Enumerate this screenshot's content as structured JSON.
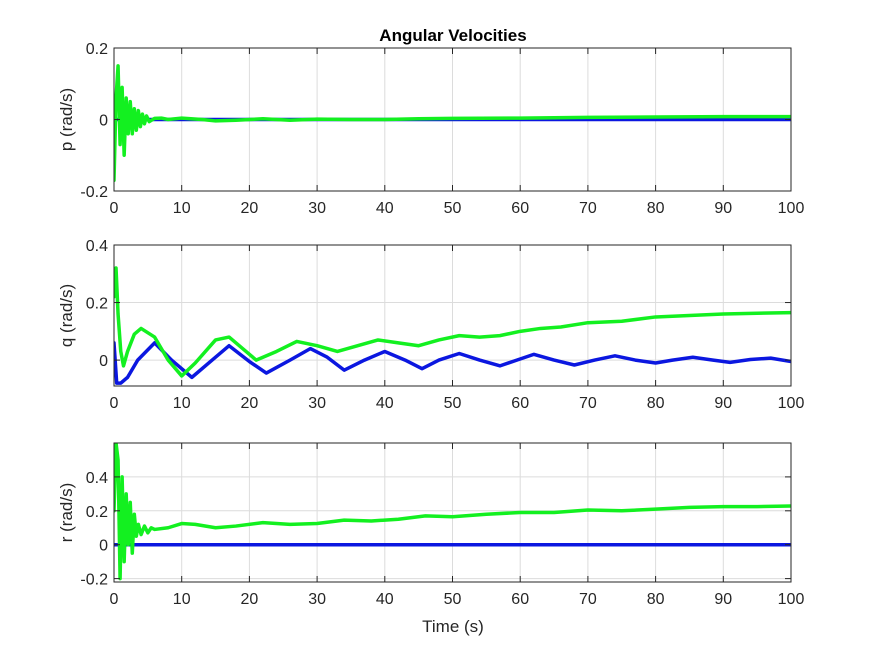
{
  "chart_data": {
    "type": "line",
    "title": "Angular Velocities",
    "xlabel": "Time (s)",
    "colors": {
      "series1": "#0b17e0",
      "series2": "#13f020"
    },
    "x_range": [
      0,
      100
    ],
    "x_ticks": [
      "0",
      "10",
      "20",
      "30",
      "40",
      "50",
      "60",
      "70",
      "80",
      "90",
      "100"
    ],
    "grid": true,
    "subplots": [
      {
        "ylabel": "p (rad/s)",
        "ylim": [
          -0.2,
          0.2
        ],
        "y_ticks": [
          -0.2,
          0,
          0.2
        ],
        "y_tick_labels": [
          "-0.2",
          "0",
          "0.2"
        ],
        "series": [
          {
            "x": [
              0,
              100
            ],
            "y": [
              0,
              0
            ]
          },
          {
            "x": [
              0,
              0.3,
              0.6,
              0.9,
              1.2,
              1.5,
              1.8,
              2.1,
              2.4,
              2.7,
              3.0,
              3.3,
              3.6,
              3.9,
              4.2,
              4.5,
              4.8,
              5.2,
              6,
              7,
              8,
              10,
              13,
              15,
              18,
              22,
              26,
              30,
              35,
              40,
              45,
              50,
              60,
              70,
              80,
              90,
              100
            ],
            "y": [
              -0.17,
              0.06,
              0.15,
              -0.07,
              0.09,
              -0.1,
              0.06,
              -0.04,
              0.05,
              -0.04,
              0.03,
              -0.03,
              0.025,
              -0.02,
              0.015,
              -0.012,
              0.01,
              -0.006,
              0.003,
              0.004,
              0,
              0.004,
              0,
              -0.004,
              -0.002,
              0.002,
              -0.002,
              0.001,
              0,
              0,
              0.002,
              0.003,
              0.004,
              0.006,
              0.007,
              0.008,
              0.008
            ]
          }
        ]
      },
      {
        "ylabel": "q (rad/s)",
        "ylim": [
          -0.09,
          0.4
        ],
        "y_ticks": [
          0,
          0.2,
          0.4
        ],
        "y_tick_labels": [
          "0",
          "0.2",
          "0.4"
        ],
        "series": [
          {
            "x": [
              0,
              0.4,
              1,
              2,
              3.5,
              6,
              8.5,
              11.5,
              14.5,
              17,
              20,
              22.5,
              26,
              29,
              31.5,
              34,
              37,
              40,
              43,
              45.5,
              48,
              51,
              54,
              57,
              59.5,
              62,
              65,
              68,
              71,
              74,
              77,
              80,
              82.5,
              85.5,
              88.5,
              91,
              94,
              97,
              100
            ],
            "y": [
              0.06,
              -0.08,
              -0.08,
              -0.06,
              0,
              0.06,
              0,
              -0.06,
              0,
              0.05,
              -0.005,
              -0.045,
              0,
              0.04,
              0.01,
              -0.035,
              0,
              0.03,
              0,
              -0.03,
              0,
              0.023,
              0,
              -0.02,
              0,
              0.02,
              0,
              -0.017,
              0,
              0.015,
              0,
              -0.01,
              0,
              0.01,
              0,
              -0.008,
              0.002,
              0.007,
              -0.005
            ]
          },
          {
            "x": [
              0,
              0.3,
              0.6,
              1,
              1.4,
              2,
              3,
              4,
              6,
              8,
              10,
              12,
              15,
              17,
              19,
              21,
              24,
              27,
              30,
              33,
              36,
              39,
              42,
              45,
              48,
              51,
              54,
              57,
              60,
              63,
              66,
              70,
              75,
              80,
              85,
              90,
              95,
              100
            ],
            "y": [
              0.22,
              0.32,
              0.16,
              0.03,
              -0.02,
              0.03,
              0.09,
              0.11,
              0.08,
              0.0,
              -0.055,
              -0.01,
              0.07,
              0.08,
              0.04,
              0.0,
              0.03,
              0.065,
              0.05,
              0.03,
              0.05,
              0.07,
              0.06,
              0.05,
              0.07,
              0.085,
              0.08,
              0.085,
              0.1,
              0.11,
              0.115,
              0.13,
              0.135,
              0.15,
              0.155,
              0.16,
              0.163,
              0.165
            ]
          }
        ]
      },
      {
        "ylabel": "r (rad/s)",
        "ylim": [
          -0.22,
          0.6
        ],
        "y_ticks": [
          -0.2,
          0,
          0.2,
          0.4
        ],
        "y_tick_labels": [
          "-0.2",
          "0",
          "0.2",
          "0.4"
        ],
        "series": [
          {
            "x": [
              0,
              100
            ],
            "y": [
              0,
              0
            ]
          },
          {
            "x": [
              0,
              0.3,
              0.6,
              0.9,
              1.2,
              1.5,
              1.8,
              2.1,
              2.4,
              2.7,
              3.0,
              3.3,
              3.6,
              4.0,
              4.5,
              5,
              5.5,
              6,
              8,
              10,
              12,
              15,
              18,
              22,
              26,
              30,
              34,
              38,
              42,
              46,
              50,
              55,
              60,
              65,
              70,
              75,
              80,
              85,
              90,
              95,
              100
            ],
            "y": [
              0.2,
              0.6,
              0.5,
              -0.2,
              0.4,
              -0.1,
              0.3,
              0.0,
              0.25,
              -0.05,
              0.18,
              0.05,
              0.12,
              0.06,
              0.11,
              0.07,
              0.1,
              0.09,
              0.1,
              0.125,
              0.12,
              0.1,
              0.11,
              0.13,
              0.12,
              0.125,
              0.145,
              0.14,
              0.15,
              0.17,
              0.165,
              0.18,
              0.19,
              0.19,
              0.205,
              0.2,
              0.21,
              0.22,
              0.225,
              0.225,
              0.228
            ]
          }
        ]
      }
    ]
  }
}
